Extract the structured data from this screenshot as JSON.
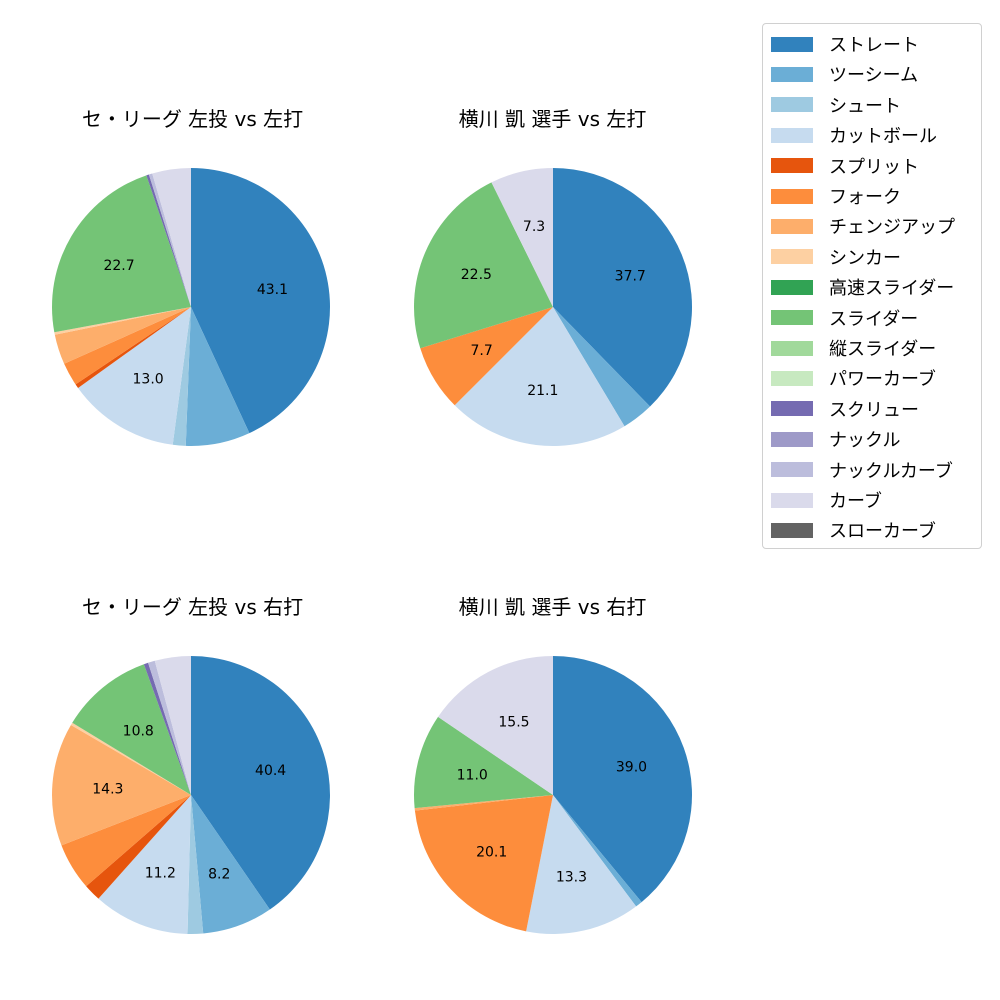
{
  "chart_data": [
    {
      "type": "pie",
      "title": "セ・リーグ 左投 vs 左打",
      "categories": [
        "ストレート",
        "ツーシーム",
        "シュート",
        "カットボール",
        "スプリット",
        "フォーク",
        "チェンジアップ",
        "シンカー",
        "スライダー",
        "スクリュー",
        "ナックルカーブ",
        "カーブ"
      ],
      "values": [
        43.1,
        7.5,
        1.5,
        13.0,
        0.5,
        2.7,
        3.5,
        0.3,
        22.7,
        0.3,
        0.4,
        4.5
      ],
      "labels_shown": [
        "43.1",
        "",
        "",
        "13.0",
        "",
        "",
        "",
        "",
        "22.7",
        "",
        "",
        ""
      ]
    },
    {
      "type": "pie",
      "title": "横川 凱 選手 vs 左打",
      "categories": [
        "ストレート",
        "ツーシーム",
        "カットボール",
        "フォーク",
        "スライダー",
        "カーブ"
      ],
      "values": [
        37.7,
        3.7,
        21.1,
        7.7,
        22.5,
        7.3
      ],
      "labels_shown": [
        "37.7",
        "",
        "21.1",
        "7.7",
        "22.5",
        "7.3"
      ]
    },
    {
      "type": "pie",
      "title": "セ・リーグ 左投 vs 右打",
      "categories": [
        "ストレート",
        "ツーシーム",
        "シュート",
        "カットボール",
        "スプリット",
        "フォーク",
        "チェンジアップ",
        "シンカー",
        "スライダー",
        "スクリュー",
        "ナックルカーブ",
        "カーブ"
      ],
      "values": [
        40.4,
        8.2,
        1.8,
        11.2,
        2.0,
        5.5,
        14.3,
        0.3,
        10.8,
        0.5,
        0.8,
        4.2
      ],
      "labels_shown": [
        "40.4",
        "8.2",
        "",
        "11.2",
        "",
        "",
        "14.3",
        "",
        "10.8",
        "",
        "",
        ""
      ]
    },
    {
      "type": "pie",
      "title": "横川 凱 選手 vs 右打",
      "categories": [
        "ストレート",
        "ツーシーム",
        "カットボール",
        "フォーク",
        "チェンジアップ",
        "スライダー",
        "カーブ"
      ],
      "values": [
        39.0,
        0.8,
        13.3,
        20.1,
        0.3,
        11.0,
        15.5
      ],
      "labels_shown": [
        "39.0",
        "",
        "13.3",
        "20.1",
        "",
        "11.0",
        "15.5"
      ]
    }
  ],
  "colors": {
    "ストレート": "#3182bd",
    "ツーシーム": "#6baed6",
    "シュート": "#9ecae1",
    "カットボール": "#c6dbef",
    "スプリット": "#e6550d",
    "フォーク": "#fd8d3c",
    "チェンジアップ": "#fdae6b",
    "シンカー": "#fdd0a2",
    "高速スライダー": "#31a354",
    "スライダー": "#74c476",
    "縦スライダー": "#a1d99b",
    "パワーカーブ": "#c7e9c0",
    "スクリュー": "#756bb1",
    "ナックル": "#9e9ac8",
    "ナックルカーブ": "#bcbddc",
    "カーブ": "#dadaeb",
    "スローカーブ": "#636363"
  },
  "legend": {
    "items": [
      "ストレート",
      "ツーシーム",
      "シュート",
      "カットボール",
      "スプリット",
      "フォーク",
      "チェンジアップ",
      "シンカー",
      "高速スライダー",
      "スライダー",
      "縦スライダー",
      "パワーカーブ",
      "スクリュー",
      "ナックル",
      "ナックルカーブ",
      "カーブ",
      "スローカーブ"
    ]
  },
  "titles": {
    "p0": "セ・リーグ 左投 vs 左打",
    "p1": "横川 凱 選手 vs 左打",
    "p2": "セ・リーグ 左投 vs 右打",
    "p3": "横川 凱 選手 vs 右打"
  }
}
